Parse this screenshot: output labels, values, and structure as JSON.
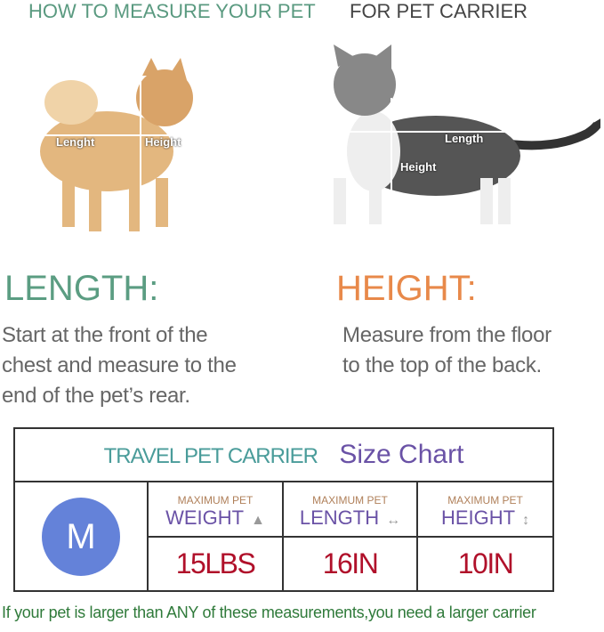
{
  "header": {
    "left": "HOW TO MEASURE YOUR PET",
    "right": "FOR PET CARRIER"
  },
  "dog": {
    "length_label": "Lenght",
    "height_label": "Height"
  },
  "cat": {
    "length_label": "Length",
    "height_label": "Height"
  },
  "length": {
    "title": "LENGTH:",
    "lines": [
      "Start at the front of the",
      "chest and measure to the",
      "end of the pet’s rear."
    ]
  },
  "height": {
    "title": "HEIGHT:",
    "lines": [
      "Measure from the floor",
      "to the top of the back."
    ]
  },
  "chart": {
    "title_left": "TRAVEL PET CARRIER",
    "title_right": "Size Chart",
    "size": "M",
    "columns": [
      {
        "small": "MAXIMUM PET",
        "label": "WEIGHT",
        "icon": "weight-icon",
        "glyph": "▲",
        "value": "15LBS"
      },
      {
        "small": "MAXIMUM PET",
        "label": "LENGTH",
        "icon": "horizontal-arrow-icon",
        "glyph": "↔",
        "value": "16IN"
      },
      {
        "small": "MAXIMUM PET",
        "label": "HEIGHT",
        "icon": "vertical-arrow-icon",
        "glyph": "↕",
        "value": "10IN"
      }
    ]
  },
  "footer": "If your pet is larger than ANY of these measurements,you need a larger carrier",
  "colors": {
    "teal": "#5b9d82",
    "orange": "#e8894a",
    "purple": "#6a52a6",
    "red": "#b0102a",
    "circle": "#6482d9",
    "footer": "#2f7a3a"
  }
}
